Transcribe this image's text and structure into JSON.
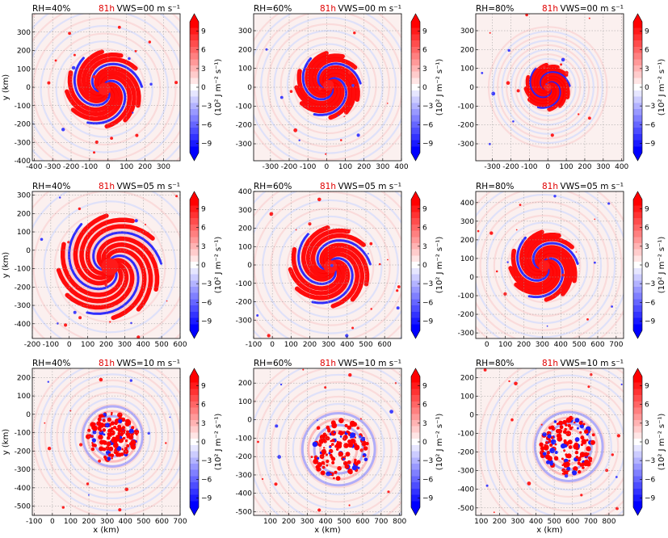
{
  "chart_data": {
    "type": "heatmap",
    "time_label": "81h",
    "x_axis_label": "x (km)",
    "y_axis_label": "y (km)",
    "colorbar": {
      "label_text": "(10² J m⁻² s⁻¹)",
      "ticks": [
        -9,
        -6,
        -3,
        0,
        3,
        6,
        9
      ],
      "range": [
        -10.5,
        10.5
      ],
      "levels": 21,
      "colormap": "bwr",
      "extend": "both"
    },
    "panels": [
      {
        "rh": "RH=40%",
        "vws": "VWS=00 m s⁻¹",
        "xlim": [
          -410,
          390
        ],
        "ylim": [
          -400,
          400
        ],
        "xticks": [
          -400,
          -300,
          -200,
          -100,
          0,
          100,
          200,
          300
        ],
        "yticks": [
          -400,
          -300,
          -200,
          -100,
          0,
          100,
          200,
          300
        ],
        "show_ylabel": true,
        "show_xlabel": false,
        "center": [
          -20,
          -10
        ],
        "radius": 190,
        "style": "ring"
      },
      {
        "rh": "RH=60%",
        "vws": "VWS=00 m s⁻¹",
        "xlim": [
          -390,
          400
        ],
        "ylim": [
          -390,
          390
        ],
        "xticks": [
          -300,
          -200,
          -100,
          0,
          100,
          200,
          300,
          400
        ],
        "yticks": [
          -300,
          -200,
          -100,
          0,
          100,
          200,
          300
        ],
        "show_ylabel": false,
        "show_xlabel": false,
        "center": [
          10,
          10
        ],
        "radius": 160,
        "style": "ring"
      },
      {
        "rh": "RH=80%",
        "vws": "VWS=00 m s⁻¹",
        "xlim": [
          -390,
          410
        ],
        "ylim": [
          -390,
          390
        ],
        "xticks": [
          -300,
          -200,
          -100,
          0,
          100,
          200,
          300,
          400
        ],
        "yticks": [
          -300,
          -200,
          -100,
          0,
          100,
          200,
          300
        ],
        "show_ylabel": false,
        "show_xlabel": false,
        "center": [
          0,
          0
        ],
        "radius": 110,
        "style": "ring"
      },
      {
        "rh": "RH=40%",
        "vws": "VWS=05 m s⁻¹",
        "xlim": [
          -200,
          600
        ],
        "ylim": [
          -480,
          320
        ],
        "xticks": [
          -200,
          -100,
          0,
          100,
          200,
          300,
          400,
          500,
          600
        ],
        "yticks": [
          -400,
          -300,
          -200,
          -100,
          0,
          100,
          200,
          300
        ],
        "show_ylabel": true,
        "show_xlabel": false,
        "center": [
          220,
          -90
        ],
        "radius": 260,
        "style": "ring"
      },
      {
        "rh": "RH=60%",
        "vws": "VWS=05 m s⁻¹",
        "xlim": [
          -100,
          690
        ],
        "ylim": [
          -400,
          400
        ],
        "xticks": [
          -100,
          0,
          100,
          200,
          300,
          400,
          500,
          600
        ],
        "yticks": [
          -300,
          -200,
          -100,
          0,
          100,
          200,
          300,
          400
        ],
        "show_ylabel": false,
        "show_xlabel": false,
        "center": [
          310,
          -10
        ],
        "radius": 200,
        "style": "ring"
      },
      {
        "rh": "RH=80%",
        "vws": "VWS=05 m s⁻¹",
        "xlim": [
          -60,
          740
        ],
        "ylim": [
          -330,
          460
        ],
        "xticks": [
          0,
          100,
          200,
          300,
          400,
          500,
          600,
          700
        ],
        "yticks": [
          -300,
          -200,
          -100,
          0,
          100,
          200,
          300,
          400
        ],
        "show_ylabel": false,
        "show_xlabel": false,
        "center": [
          310,
          60
        ],
        "radius": 170,
        "style": "ring"
      },
      {
        "rh": "RH=40%",
        "vws": "VWS=10 m s⁻¹",
        "xlim": [
          -110,
          700
        ],
        "ylim": [
          -550,
          250
        ],
        "xticks": [
          -100,
          0,
          100,
          200,
          300,
          400,
          500,
          600,
          700
        ],
        "yticks": [
          -500,
          -400,
          -300,
          -200,
          -100,
          0,
          100,
          200
        ],
        "show_ylabel": true,
        "show_xlabel": true,
        "center": [
          330,
          -120
        ],
        "radius": 150,
        "style": "scattered"
      },
      {
        "rh": "RH=60%",
        "vws": "VWS=10 m s⁻¹",
        "xlim": [
          10,
          810
        ],
        "ylim": [
          -520,
          280
        ],
        "xticks": [
          100,
          200,
          300,
          400,
          500,
          600,
          700,
          800
        ],
        "yticks": [
          -500,
          -400,
          -300,
          -200,
          -100,
          0,
          100,
          200
        ],
        "show_ylabel": false,
        "show_xlabel": true,
        "center": [
          470,
          -160
        ],
        "radius": 180,
        "style": "scattered"
      },
      {
        "rh": "RH=80%",
        "vws": "VWS=10 m s⁻¹",
        "xlim": [
          70,
          880
        ],
        "ylim": [
          -540,
          250
        ],
        "xticks": [
          100,
          200,
          300,
          400,
          500,
          600,
          700,
          800
        ],
        "yticks": [
          -500,
          -400,
          -300,
          -200,
          -100,
          0,
          100,
          200
        ],
        "show_ylabel": false,
        "show_xlabel": true,
        "center": [
          580,
          -170
        ],
        "radius": 170,
        "style": "scattered"
      }
    ]
  }
}
